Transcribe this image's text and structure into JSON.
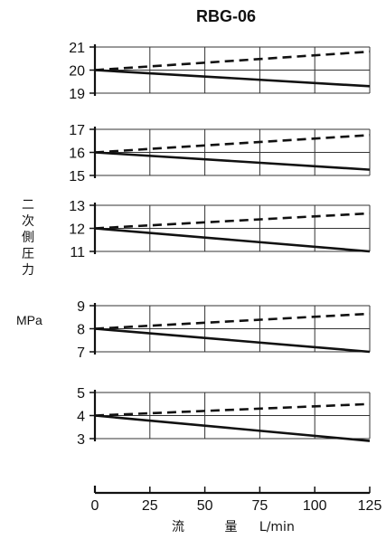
{
  "chart_data": {
    "type": "line",
    "title": "RBG-06",
    "ylabel_chars": [
      "二",
      "次",
      "側",
      "圧",
      "力"
    ],
    "yunit": "MPa",
    "xlabel": "流 量",
    "xunit": "L/min",
    "xlim": [
      0,
      125
    ],
    "x_ticks": [
      0,
      25,
      50,
      75,
      100,
      125
    ],
    "grid": true,
    "panels": [
      {
        "ylim": [
          19,
          21
        ],
        "y_ticks": [
          21,
          20,
          19
        ],
        "series": [
          {
            "style": "dashed",
            "x": [
              0,
              125
            ],
            "y": [
              20,
              20.8
            ]
          },
          {
            "style": "solid",
            "x": [
              0,
              125
            ],
            "y": [
              20,
              19.3
            ]
          }
        ]
      },
      {
        "ylim": [
          15,
          17
        ],
        "y_ticks": [
          17,
          16,
          15
        ],
        "series": [
          {
            "style": "dashed",
            "x": [
              0,
              125
            ],
            "y": [
              16,
              16.75
            ]
          },
          {
            "style": "solid",
            "x": [
              0,
              125
            ],
            "y": [
              16,
              15.25
            ]
          }
        ]
      },
      {
        "ylim": [
          11,
          13
        ],
        "y_ticks": [
          13,
          12,
          11
        ],
        "series": [
          {
            "style": "dashed",
            "x": [
              0,
              125
            ],
            "y": [
              12,
              12.65
            ]
          },
          {
            "style": "solid",
            "x": [
              0,
              125
            ],
            "y": [
              12,
              11
            ]
          }
        ]
      },
      {
        "ylim": [
          7,
          9
        ],
        "y_ticks": [
          9,
          8,
          7
        ],
        "series": [
          {
            "style": "dashed",
            "x": [
              0,
              125
            ],
            "y": [
              8,
              8.65
            ]
          },
          {
            "style": "solid",
            "x": [
              0,
              125
            ],
            "y": [
              8,
              7
            ]
          }
        ]
      },
      {
        "ylim": [
          3,
          5
        ],
        "y_ticks": [
          5,
          4,
          3
        ],
        "series": [
          {
            "style": "dashed",
            "x": [
              0,
              125
            ],
            "y": [
              4,
              4.5
            ]
          },
          {
            "style": "solid",
            "x": [
              0,
              125
            ],
            "y": [
              4,
              2.9
            ]
          }
        ]
      }
    ],
    "colors": {
      "line": "#111111",
      "grid": "#333333"
    }
  }
}
